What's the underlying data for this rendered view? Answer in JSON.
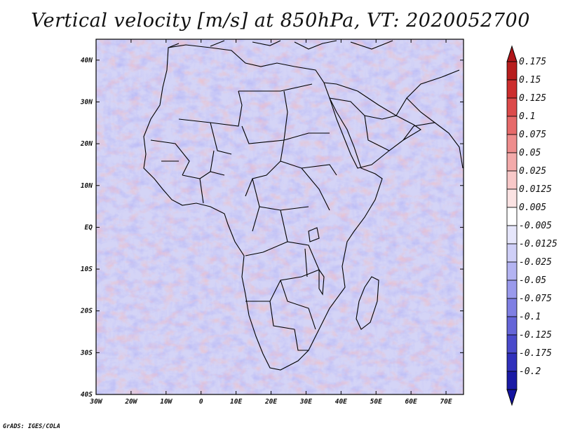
{
  "title": "Vertical velocity [m/s] at 850hPa, VT: 2020052700",
  "footer": "GrADS: IGES/COLA",
  "map": {
    "lon_range": [
      -30,
      75
    ],
    "lat_range": [
      -40,
      45
    ],
    "lon_ticks": [
      {
        "value": -30,
        "label": "30W"
      },
      {
        "value": -20,
        "label": "20W"
      },
      {
        "value": -10,
        "label": "10W"
      },
      {
        "value": 0,
        "label": "0"
      },
      {
        "value": 10,
        "label": "10E"
      },
      {
        "value": 20,
        "label": "20E"
      },
      {
        "value": 30,
        "label": "30E"
      },
      {
        "value": 40,
        "label": "40E"
      },
      {
        "value": 50,
        "label": "50E"
      },
      {
        "value": 60,
        "label": "60E"
      },
      {
        "value": 70,
        "label": "70E"
      }
    ],
    "lat_ticks": [
      {
        "value": 40,
        "label": "40N"
      },
      {
        "value": 30,
        "label": "30N"
      },
      {
        "value": 20,
        "label": "20N"
      },
      {
        "value": 10,
        "label": "10N"
      },
      {
        "value": 0,
        "label": "EQ"
      },
      {
        "value": -10,
        "label": "10S"
      },
      {
        "value": -20,
        "label": "20S"
      },
      {
        "value": -30,
        "label": "30S"
      },
      {
        "value": -40,
        "label": "40S"
      }
    ]
  },
  "colorbar": {
    "levels": [
      {
        "label": "0.175",
        "color": "#b71d1d"
      },
      {
        "label": "0.15",
        "color": "#cc2d2d"
      },
      {
        "label": "0.125",
        "color": "#dc4a4a"
      },
      {
        "label": "0.1",
        "color": "#e66a6a"
      },
      {
        "label": "0.075",
        "color": "#ee8d8d"
      },
      {
        "label": "0.05",
        "color": "#f3aaaa"
      },
      {
        "label": "0.025",
        "color": "#f8c8c8"
      },
      {
        "label": "0.0125",
        "color": "#fbe3e3"
      },
      {
        "label": "0.005",
        "color": "#ffffff"
      },
      {
        "label": "-0.005",
        "color": "#e6e6fb"
      },
      {
        "label": "-0.0125",
        "color": "#cfcff7"
      },
      {
        "label": "-0.025",
        "color": "#b4b4f2"
      },
      {
        "label": "-0.05",
        "color": "#9a9aec"
      },
      {
        "label": "-0.075",
        "color": "#7f7fe3"
      },
      {
        "label": "-0.1",
        "color": "#6565d8"
      },
      {
        "label": "-0.125",
        "color": "#4a4acb"
      },
      {
        "label": "-0.175",
        "color": "#3030bb"
      },
      {
        "label": "-0.2",
        "color": "#1a1aa5"
      }
    ],
    "top_color": "#b0161a",
    "bottom_color": "#1414a0"
  }
}
